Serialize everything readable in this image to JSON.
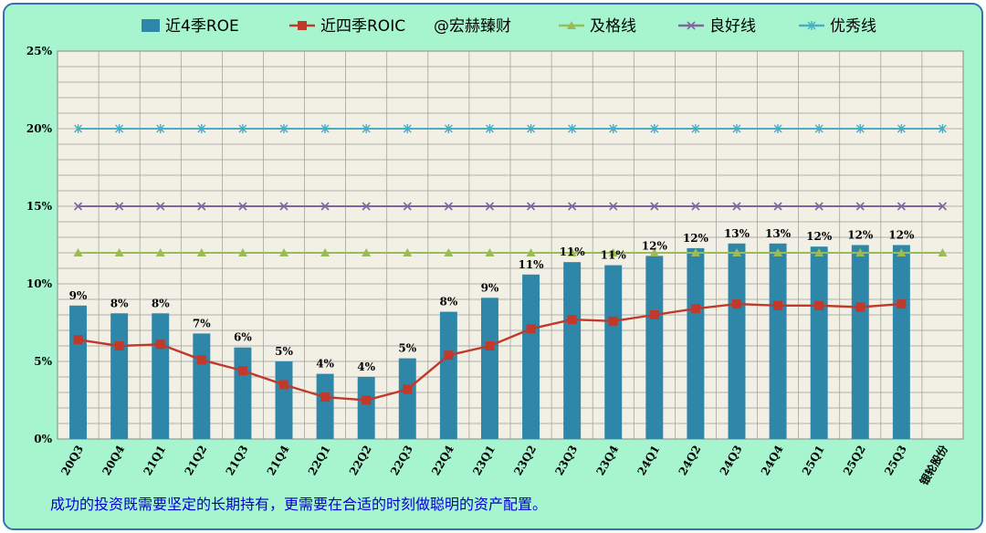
{
  "chart_data": {
    "type": "bar",
    "categories": [
      "20Q3",
      "20Q4",
      "21Q1",
      "21Q2",
      "21Q3",
      "21Q4",
      "22Q1",
      "22Q2",
      "22Q3",
      "22Q4",
      "23Q1",
      "23Q2",
      "23Q3",
      "23Q4",
      "24Q1",
      "24Q2",
      "24Q3",
      "24Q4",
      "25Q1",
      "25Q2",
      "25Q3",
      "银轮股份"
    ],
    "ylim": [
      0,
      25
    ],
    "yticks": [
      "0%",
      "5%",
      "10%",
      "15%",
      "20%",
      "25%"
    ],
    "grid": true,
    "legend_position": "top",
    "series": [
      {
        "name": "近4季ROE",
        "kind": "bar",
        "color": "#2e86a8",
        "values": [
          8.6,
          8.1,
          8.1,
          6.8,
          5.9,
          5.0,
          4.2,
          4.0,
          5.2,
          8.2,
          9.1,
          10.6,
          11.4,
          11.2,
          11.8,
          12.3,
          12.6,
          12.6,
          12.4,
          12.5,
          12.5,
          null
        ],
        "labels": [
          "9%",
          "8%",
          "8%",
          "7%",
          "6%",
          "5%",
          "4%",
          "4%",
          "5%",
          "8%",
          "9%",
          "11%",
          "11%",
          "11%",
          "12%",
          "12%",
          "13%",
          "13%",
          "12%",
          "12%",
          "12%",
          ""
        ]
      },
      {
        "name": "近四季ROIC",
        "kind": "line",
        "color": "#c0392b",
        "marker": "square",
        "values": [
          6.4,
          6.0,
          6.1,
          5.1,
          4.4,
          3.5,
          2.7,
          2.5,
          3.2,
          5.4,
          6.0,
          7.1,
          7.7,
          7.6,
          8.0,
          8.4,
          8.7,
          8.6,
          8.6,
          8.5,
          8.7,
          null
        ]
      },
      {
        "name": "及格线",
        "kind": "line",
        "color": "#9bbb59",
        "marker": "triangle",
        "values": [
          12,
          12,
          12,
          12,
          12,
          12,
          12,
          12,
          12,
          12,
          12,
          12,
          12,
          12,
          12,
          12,
          12,
          12,
          12,
          12,
          12,
          12
        ]
      },
      {
        "name": "良好线",
        "kind": "line",
        "color": "#8064a2",
        "marker": "x",
        "values": [
          15,
          15,
          15,
          15,
          15,
          15,
          15,
          15,
          15,
          15,
          15,
          15,
          15,
          15,
          15,
          15,
          15,
          15,
          15,
          15,
          15,
          15
        ]
      },
      {
        "name": "优秀线",
        "kind": "line",
        "color": "#4bacc6",
        "marker": "star",
        "values": [
          20,
          20,
          20,
          20,
          20,
          20,
          20,
          20,
          20,
          20,
          20,
          20,
          20,
          20,
          20,
          20,
          20,
          20,
          20,
          20,
          20,
          20
        ]
      }
    ],
    "watermark": "@宏赫臻财",
    "footnote": "成功的投资既需要坚定的长期持有，更需要在合适的时刻做聪明的资产配置。"
  }
}
